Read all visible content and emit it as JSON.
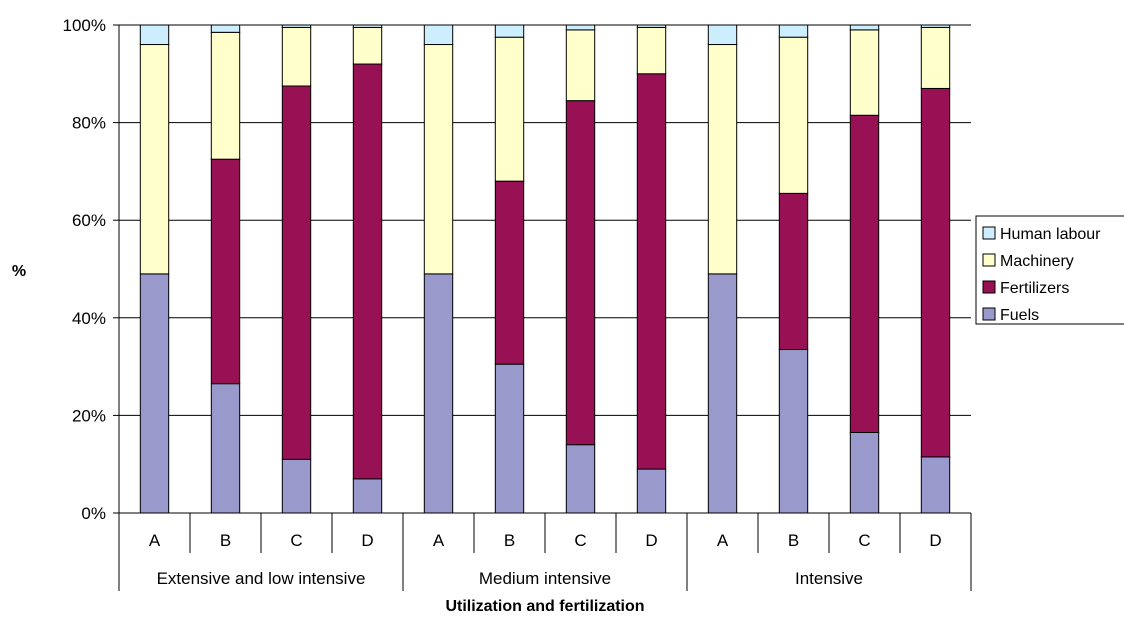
{
  "chart_data": {
    "type": "bar",
    "stacked": true,
    "percent": true,
    "xlabel": "Utilization and fertilization",
    "ylabel": "%",
    "ylim": [
      0,
      100
    ],
    "yticks": [
      "0%",
      "20%",
      "40%",
      "60%",
      "80%",
      "100%"
    ],
    "grid": true,
    "legend_position": "right",
    "groups": [
      {
        "label": "Extensive and low intensive",
        "categories": [
          "A",
          "B",
          "C",
          "D"
        ]
      },
      {
        "label": "Medium intensive",
        "categories": [
          "A",
          "B",
          "C",
          "D"
        ]
      },
      {
        "label": "Intensive",
        "categories": [
          "A",
          "B",
          "C",
          "D"
        ]
      }
    ],
    "series": [
      {
        "name": "Fuels",
        "color": "#9999cc",
        "values": [
          49,
          26.5,
          11,
          7,
          49,
          30.5,
          14,
          9,
          49,
          33.5,
          16.5,
          11.5
        ]
      },
      {
        "name": "Fertilizers",
        "color": "#991155",
        "values": [
          0,
          46,
          76.5,
          85,
          0,
          37.5,
          70.5,
          81,
          0,
          32,
          65,
          75.5
        ]
      },
      {
        "name": "Machinery",
        "color": "#ffffcc",
        "values": [
          47,
          26,
          12,
          7.5,
          47,
          29.5,
          14.5,
          9.5,
          47,
          32,
          17.5,
          12.5
        ]
      },
      {
        "name": "Human labour",
        "color": "#cceeff",
        "values": [
          4,
          1.5,
          0.5,
          0.5,
          4,
          2.5,
          1,
          0.5,
          4,
          2.5,
          1,
          0.5
        ]
      }
    ],
    "legend_order": [
      "Human labour",
      "Machinery",
      "Fertilizers",
      "Fuels"
    ]
  }
}
